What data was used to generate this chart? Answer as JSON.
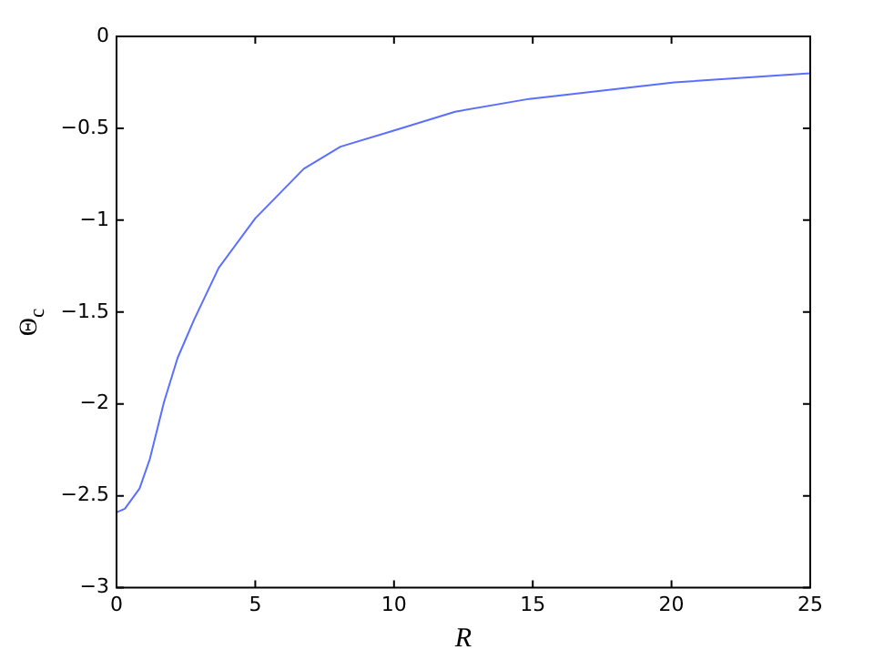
{
  "chart_data": {
    "type": "line",
    "xlabel": "R",
    "ylabel": "Θ$_{c}$",
    "xlim": [
      0,
      25
    ],
    "xticks": [
      0,
      5,
      10,
      15,
      20,
      25
    ],
    "ylim": [
      -3,
      0
    ],
    "yticks": [
      0,
      -0.5,
      -1,
      -1.5,
      -2,
      -2.5,
      -3
    ],
    "grid": false,
    "legend": false,
    "marker": "none",
    "line_style": "solid",
    "series": [
      {
        "color": "#5a6eff",
        "x": [
          0,
          0.3,
          0.83,
          1.2,
          1.71,
          2.2,
          2.8,
          3.68,
          5,
          6.75,
          8.07,
          10.04,
          12.2,
          14.87,
          20.1,
          25
        ],
        "values": [
          -2.59,
          -2.57,
          -2.46,
          -2.3,
          -1.99,
          -1.75,
          -1.54,
          -1.26,
          -0.99,
          -0.72,
          -0.6,
          -0.51,
          -0.41,
          -0.34,
          -0.25,
          -0.2
        ]
      }
    ]
  }
}
